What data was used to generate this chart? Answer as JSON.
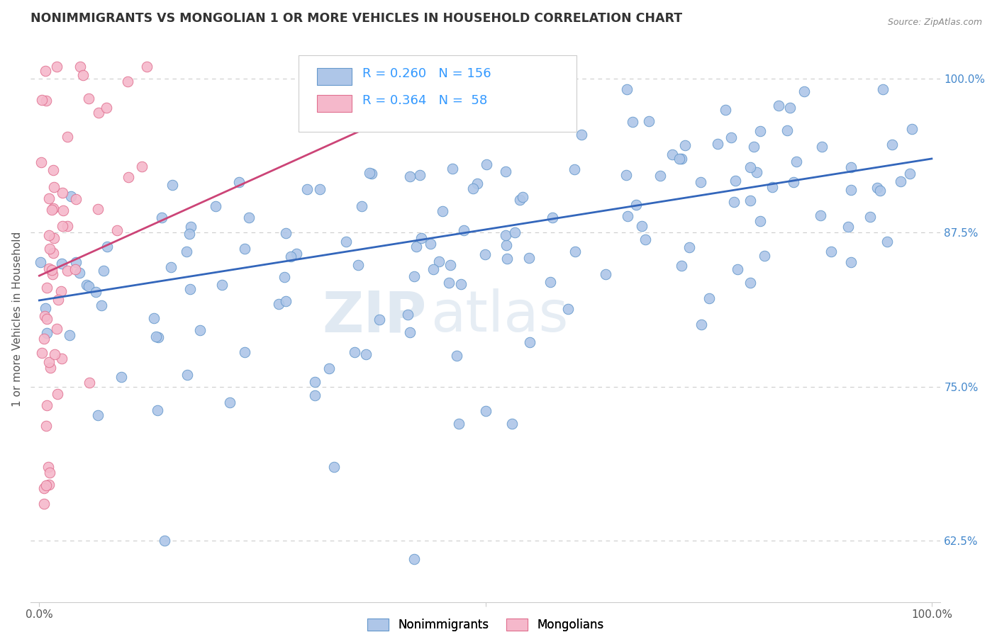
{
  "title": "NONIMMIGRANTS VS MONGOLIAN 1 OR MORE VEHICLES IN HOUSEHOLD CORRELATION CHART",
  "source_text": "Source: ZipAtlas.com",
  "ylabel": "1 or more Vehicles in Household",
  "xlim": [
    -0.01,
    1.01
  ],
  "ylim": [
    0.575,
    1.035
  ],
  "y_ticks_right": [
    0.625,
    0.75,
    0.875,
    1.0
  ],
  "y_tick_labels_right": [
    "62.5%",
    "75.0%",
    "87.5%",
    "100.0%"
  ],
  "legend_labels": [
    "Nonimmigrants",
    "Mongolians"
  ],
  "blue_color": "#aec6e8",
  "blue_edge": "#6699cc",
  "pink_color": "#f5b8cb",
  "pink_edge": "#e07090",
  "trend_blue": "#3366bb",
  "trend_pink": "#cc4477",
  "R_blue": 0.26,
  "N_blue": 156,
  "R_pink": 0.364,
  "N_pink": 58,
  "watermark_zip": "ZIP",
  "watermark_atlas": "atlas",
  "background_color": "#ffffff",
  "grid_color": "#cccccc",
  "title_color": "#333333",
  "axis_label_color": "#4488cc",
  "legend_text_color": "#222222",
  "legend_value_color": "#3399ff"
}
